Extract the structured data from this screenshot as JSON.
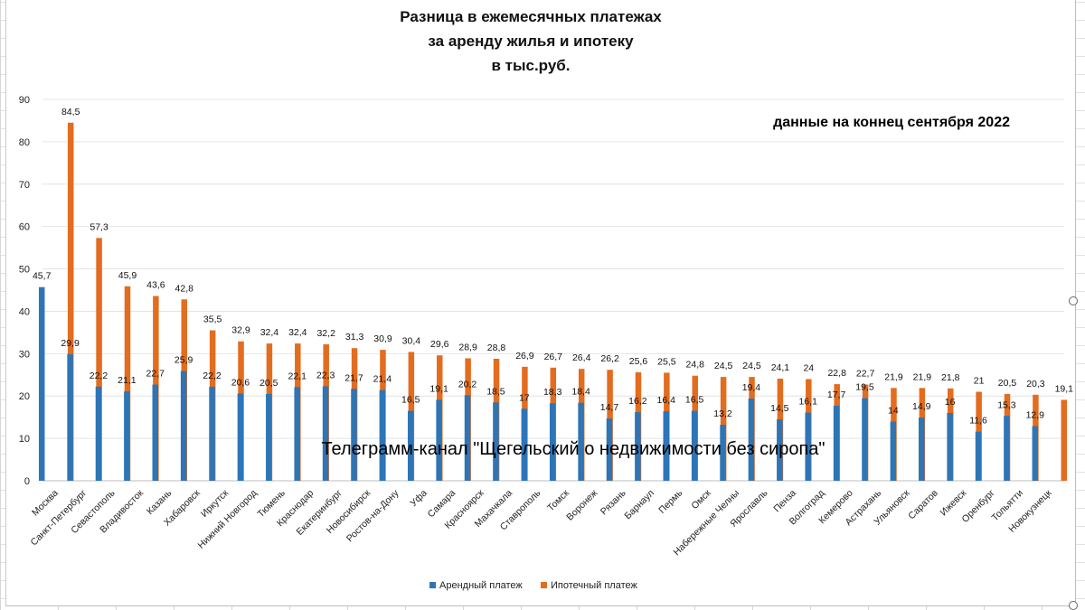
{
  "chart_data": {
    "type": "bar",
    "title_lines": [
      "Разница в ежемесячных платежах",
      "за аренду жилья и ипотеку",
      "в тыс.руб."
    ],
    "annotation": "данные на коннец сентября 2022",
    "watermark": "Телеграмм-канал \"Щегельский о недвижимости без сиропа\"",
    "ylim": [
      0,
      90
    ],
    "yticks": [
      0,
      10,
      20,
      30,
      40,
      50,
      60,
      70,
      80,
      90
    ],
    "grid": true,
    "legend_position": "bottom",
    "categories": [
      "Москва",
      "Санкт-Петербург",
      "Севастополь",
      "Владивосток",
      "Казань",
      "Хабаровск",
      "Иркутск",
      "Нижний Новгород",
      "Тюмень",
      "Краснодар",
      "Екатеринбург",
      "Новосибирск",
      "Ростов-на-Дону",
      "Уфа",
      "Самара",
      "Красноярск",
      "Махачкала",
      "Ставрополь",
      "Томск",
      "Воронеж",
      "Рязань",
      "Барнаул",
      "Пермь",
      "Омск",
      "Набережные Челны",
      "Ярославль",
      "Пенза",
      "Волгоград",
      "Кемерово",
      "Астрахань",
      "Ульяновск",
      "Саратов",
      "Ижевск",
      "Оренбург",
      "Тольятти",
      "Новокузнецк"
    ],
    "series": [
      {
        "name": "Арендный платеж",
        "color": "#2e75b6",
        "values": [
          45.7,
          29.9,
          22.2,
          21.1,
          22.7,
          25.9,
          22.2,
          20.6,
          20.5,
          22.1,
          22.3,
          21.7,
          21.4,
          16.5,
          19.1,
          20.2,
          18.5,
          17,
          18.3,
          18.4,
          14.7,
          16.2,
          16.4,
          16.5,
          13.2,
          19.4,
          14.5,
          16.1,
          17.7,
          19.5,
          14,
          14.9,
          16,
          11.6,
          15.3,
          12.9
        ]
      },
      {
        "name": "Ипотечный платеж",
        "color": "#e36c1f",
        "values": [
          84.5,
          57.3,
          45.9,
          43.6,
          42.8,
          35.5,
          32.9,
          32.4,
          32.4,
          32.2,
          31.3,
          30.9,
          30.4,
          29.6,
          28.9,
          28.8,
          26.9,
          26.7,
          26.4,
          26.2,
          25.6,
          25.5,
          24.8,
          24.5,
          24.5,
          24.1,
          24,
          22.8,
          22.7,
          21.9,
          21.9,
          21.8,
          21,
          20.5,
          20.3,
          19.1
        ]
      }
    ]
  }
}
